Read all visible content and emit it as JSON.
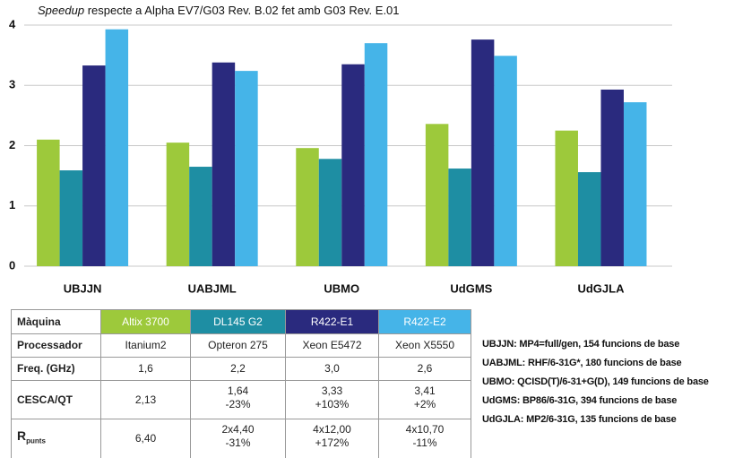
{
  "chart_data": {
    "type": "bar",
    "title_emphasis": "Speedup",
    "title": "respecte a Alpha EV7/G03 Rev. B.02 fet amb G03 Rev. E.01",
    "categories": [
      "UBJJN",
      "UABJML",
      "UBMO",
      "UdGMS",
      "UdGJLA"
    ],
    "series": [
      {
        "name": "Altix 3700",
        "color": "#9dc93b",
        "values": [
          2.1,
          2.05,
          1.96,
          2.36,
          2.25
        ]
      },
      {
        "name": "DL145 G2",
        "color": "#1e8ea3",
        "values": [
          1.59,
          1.65,
          1.78,
          1.62,
          1.56
        ]
      },
      {
        "name": "R422-E1",
        "color": "#2a2a7e",
        "values": [
          3.33,
          3.38,
          3.35,
          3.76,
          2.93
        ]
      },
      {
        "name": "R422-E2",
        "color": "#45b4e8",
        "values": [
          3.93,
          3.24,
          3.7,
          3.49,
          2.72
        ]
      }
    ],
    "ylim": [
      0,
      4
    ],
    "yticks": [
      0,
      1,
      2,
      3,
      4
    ],
    "grid": true
  },
  "table": {
    "header": "Màquina",
    "rows": [
      {
        "label": "Processador",
        "cells": [
          [
            "Itanium2"
          ],
          [
            "Opteron 275"
          ],
          [
            "Xeon E5472"
          ],
          [
            "Xeon X5550"
          ]
        ]
      },
      {
        "label": "Freq. (GHz)",
        "cells": [
          [
            "1,6"
          ],
          [
            "2,2"
          ],
          [
            "3,0"
          ],
          [
            "2,6"
          ]
        ]
      },
      {
        "label": "CESCA/QT",
        "cells": [
          [
            "2,13"
          ],
          [
            "1,64",
            "-23%"
          ],
          [
            "3,33",
            "+103%"
          ],
          [
            "3,41",
            "+2%"
          ]
        ]
      },
      {
        "label": "R",
        "label_sub": "punts",
        "cells": [
          [
            "6,40"
          ],
          [
            "2x4,40",
            "-31%"
          ],
          [
            "4x12,00",
            "+172%"
          ],
          [
            "4x10,70",
            "-11%"
          ]
        ]
      }
    ]
  },
  "notes": [
    "UBJJN: MP4=full/gen, 154 funcions de base",
    "UABJML: RHF/6-31G*, 180 funcions de base",
    "UBMO: QCISD(T)/6-31+G(D), 149 funcions de base",
    "UdGMS: BP86/6-31G, 394 funcions de base",
    "UdGJLA: MP2/6-31G, 135 funcions de base"
  ]
}
